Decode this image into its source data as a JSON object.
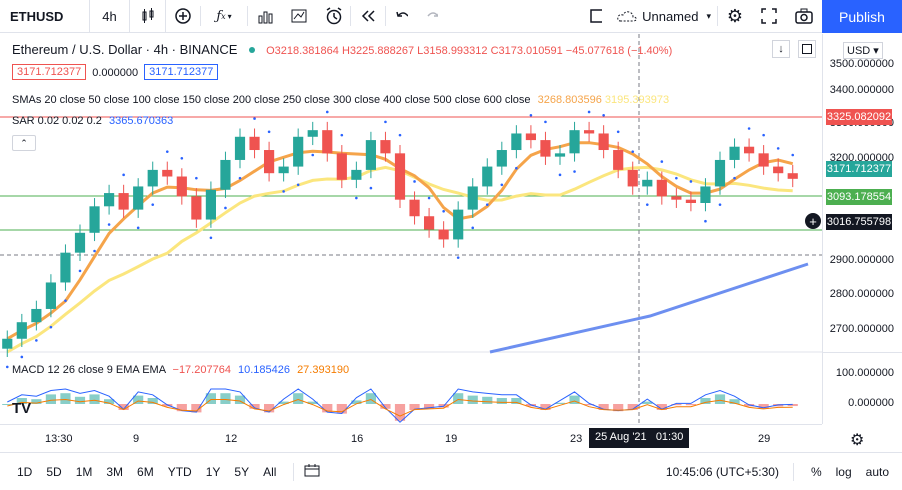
{
  "toolbar": {
    "symbol": "ETHUSD",
    "interval": "4h",
    "layout_name": "Unnamed",
    "publish_label": "Publish"
  },
  "legend": {
    "title": "Ethereum / U.S. Dollar · 4h · BINANCE",
    "ohlc": "O3218.381864 H3225.888267 L3158.993312 C3173.010591 −45.077618 (−1.40%)",
    "bid": "3171.712377",
    "spread": "0.000000",
    "ask": "3171.712377",
    "sma_label": "SMAs 20 close 50 close 100 close 150 close 200 close 250 close 300 close 400 close 500 close 600 close",
    "sma_v1": "3268.803596",
    "sma_v2": "3195.393973",
    "sar_label": "SAR 0.02 0.02 0.2",
    "sar_value": "3365.670363",
    "macd_label": "MACD 12 26 close 9 EMA EMA",
    "macd_v1": "−17.207764",
    "macd_v2": "10.185426",
    "macd_v3": "27.393190"
  },
  "price_axis": {
    "currency": "USD",
    "ticks": [
      "3500.000000",
      "3400.000000",
      "3300.000000",
      "3200.000000",
      "3000.000000",
      "2900.000000",
      "2800.000000",
      "2700.000000"
    ],
    "macd_ticks": [
      "100.000000",
      "0.000000"
    ],
    "tags": {
      "red": "3325.082092",
      "current": "3171.712377",
      "green": "3093.178554",
      "cursor": "3016.755798"
    }
  },
  "time_axis": {
    "ticks": [
      "13:30",
      "9",
      "12",
      "16",
      "19",
      "23",
      "29"
    ],
    "cursor": "25 Aug '21   01:30"
  },
  "bottom_bar": {
    "ranges": [
      "1D",
      "5D",
      "1M",
      "3M",
      "6M",
      "YTD",
      "1Y",
      "5Y",
      "All"
    ],
    "clock": "10:45:06 (UTC+5:30)",
    "percent": "%",
    "log": "log",
    "auto": "auto"
  },
  "colors": {
    "up": "#26a69a",
    "down": "#ef5350",
    "accent": "#2962ff",
    "sma_orange": "#f5a44a",
    "sma_yellow": "#fbe67e",
    "sma_blue": "#6d8ff0"
  },
  "chart_data": {
    "type": "line",
    "title": "Ethereum / U.S. Dollar · 4h · BINANCE",
    "series": [
      {
        "name": "Close",
        "values": [
          2690,
          2740,
          2780,
          2860,
          2950,
          3010,
          3090,
          3130,
          3080,
          3150,
          3200,
          3180,
          3120,
          3050,
          3140,
          3230,
          3300,
          3260,
          3190,
          3210,
          3300,
          3320,
          3250,
          3170,
          3200,
          3290,
          3250,
          3110,
          3060,
          3020,
          2990,
          3080,
          3150,
          3210,
          3260,
          3310,
          3290,
          3240,
          3250,
          3320,
          3310,
          3260,
          3200,
          3150,
          3170,
          3120,
          3110,
          3100,
          3150,
          3230,
          3270,
          3250,
          3210,
          3190,
          3173
        ]
      }
    ],
    "ylim": [
      2650,
      3550
    ]
  }
}
